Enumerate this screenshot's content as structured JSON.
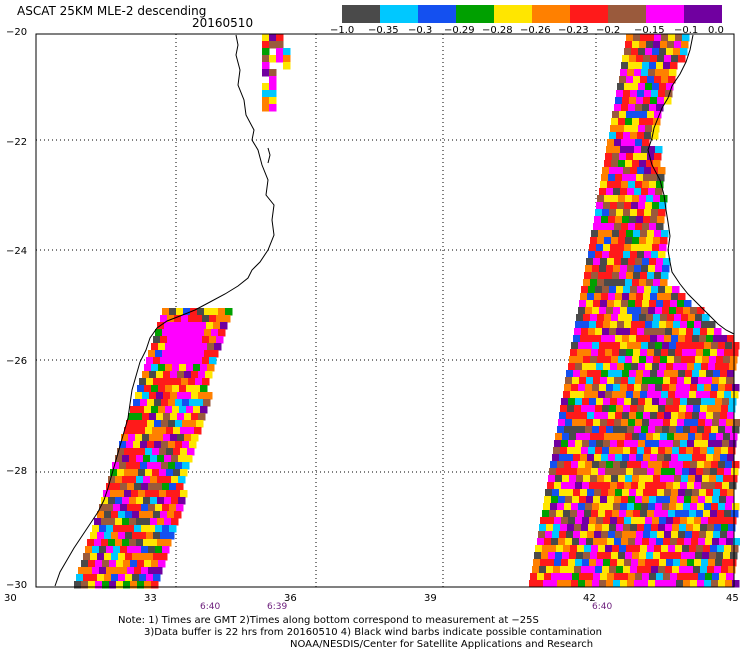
{
  "title": "ASCAT 25KM MLE-2 descending",
  "date": "20160510",
  "colorbar": {
    "colors": [
      "#4a4a4a",
      "#00c8ff",
      "#1450f0",
      "#00a000",
      "#ffe600",
      "#ff8000",
      "#ff1a1a",
      "#9a5a3c",
      "#ff00ff",
      "#7000a0"
    ],
    "labels": [
      "−1.0",
      "−0.35",
      "−0.3",
      "−0.29",
      "−0.28",
      "−0.26",
      "−0.23",
      "−0.2",
      "−0.15",
      "−0.1",
      "0.0"
    ]
  },
  "axes": {
    "lat_labels": [
      "−20",
      "−22",
      "−24",
      "−26",
      "−28",
      "−30"
    ],
    "lon_labels": [
      "30",
      "33",
      "36",
      "39",
      "42",
      "45"
    ],
    "lat_range": [
      -30,
      -20
    ],
    "lon_range": [
      30,
      45
    ],
    "grid": "dotted"
  },
  "time_labels": [
    "6:40",
    "6:39",
    "6:40"
  ],
  "notes": [
    "Note: 1) Times are GMT 2)Times along bottom correspond to measurement at −25S",
    "3)Data buffer is 22 hrs from 20160510 4) Black wind barbs indicate possible contamination",
    "NOAA/NESDIS/Center for Satellite Applications and Research"
  ]
}
